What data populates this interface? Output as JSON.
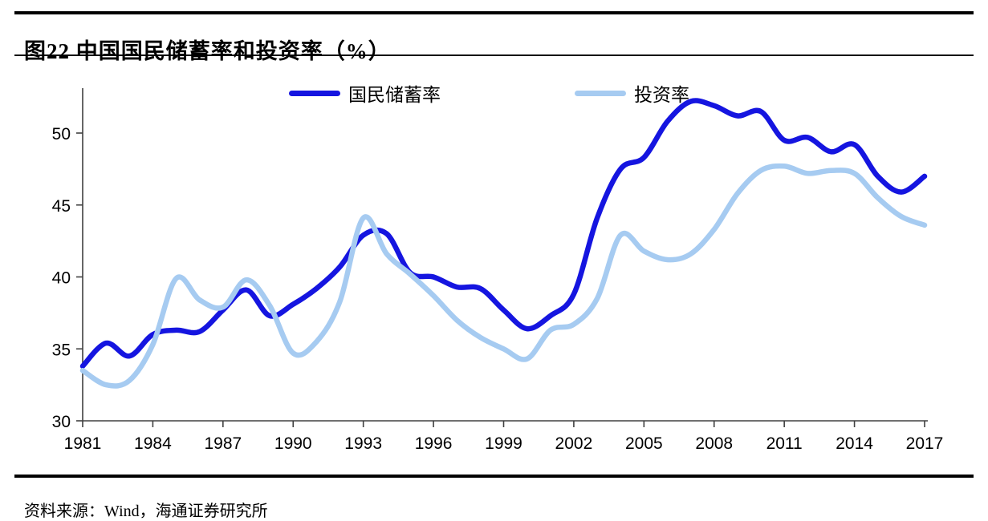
{
  "header": {
    "title": "图22 中国国民储蓄率和投资率（%）"
  },
  "footer": {
    "source": "资料来源：Wind，海通证券研究所"
  },
  "legend": [
    {
      "id": "savings",
      "label": "国民储蓄率",
      "color": "#1515e0"
    },
    {
      "id": "investment",
      "label": "投资率",
      "color": "#a6cbf1"
    }
  ],
  "colors": {
    "savings_line": "#1515e0",
    "investment_line": "#a6cbf1",
    "axis": "#404040",
    "text": "#000000",
    "rules": "#000000"
  },
  "chart_data": {
    "type": "line",
    "title": "图22 中国国民储蓄率和投资率（%）",
    "xlabel": "",
    "ylabel": "",
    "x": [
      1981,
      1982,
      1983,
      1984,
      1985,
      1986,
      1987,
      1988,
      1989,
      1990,
      1991,
      1992,
      1993,
      1994,
      1995,
      1996,
      1997,
      1998,
      1999,
      2000,
      2001,
      2002,
      2003,
      2004,
      2005,
      2006,
      2007,
      2008,
      2009,
      2010,
      2011,
      2012,
      2013,
      2014,
      2015,
      2016,
      2017
    ],
    "series": [
      {
        "name": "国民储蓄率",
        "color": "#1515e0",
        "values": [
          33.8,
          35.4,
          34.5,
          36.0,
          36.3,
          36.2,
          37.7,
          39.1,
          37.3,
          38.1,
          39.2,
          40.7,
          42.9,
          43.0,
          40.3,
          40.0,
          39.3,
          39.2,
          37.7,
          36.4,
          37.3,
          38.8,
          44.1,
          47.5,
          48.3,
          50.8,
          52.2,
          51.9,
          51.2,
          51.5,
          49.5,
          49.7,
          48.7,
          49.2,
          47.0,
          45.9,
          47.0
        ]
      },
      {
        "name": "投资率",
        "color": "#a6cbf1",
        "values": [
          33.5,
          32.5,
          32.8,
          35.3,
          39.9,
          38.4,
          37.9,
          39.8,
          38.0,
          34.7,
          35.5,
          38.3,
          44.1,
          41.6,
          40.2,
          38.7,
          37.0,
          35.8,
          35.0,
          34.3,
          36.3,
          36.7,
          38.5,
          42.9,
          41.8,
          41.2,
          41.6,
          43.3,
          45.8,
          47.4,
          47.7,
          47.2,
          47.4,
          47.2,
          45.5,
          44.2,
          43.6
        ]
      }
    ],
    "xlim": [
      1981,
      2017
    ],
    "ylim": [
      30,
      53.1
    ],
    "yticks": [
      30,
      35,
      40,
      45,
      50
    ],
    "xticks": [
      1981,
      1984,
      1987,
      1990,
      1993,
      1996,
      1999,
      2002,
      2005,
      2008,
      2011,
      2014,
      2017
    ],
    "grid": false,
    "legend_position": "top-center"
  }
}
